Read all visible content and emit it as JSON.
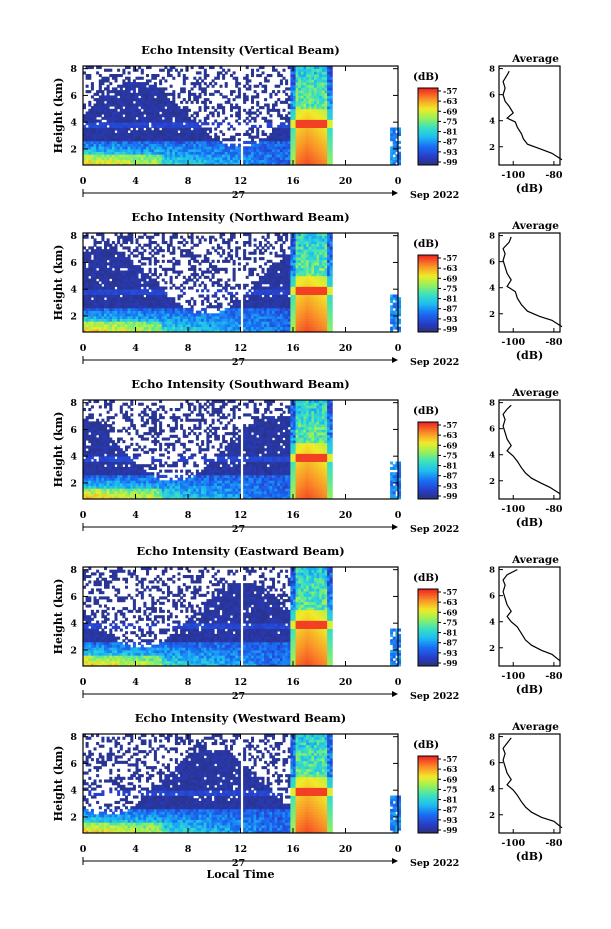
{
  "figure": {
    "xlabel": "Local Time",
    "date_day": "27",
    "date_month_year": "Sep 2022",
    "ylabel": "Height (km)",
    "colorbar_unit": "(dB)",
    "colorbar_ticks": [
      "-57",
      "-63",
      "-69",
      "-75",
      "-81",
      "-87",
      "-93",
      "-99"
    ],
    "profile_title": "Average",
    "profile_xlabel": "(dB)"
  },
  "chart_data": [
    {
      "type": "heatmap",
      "title": "Echo Intensity (Vertical Beam)",
      "xlabel": "Local Time",
      "ylabel": "Height (km)",
      "x_ticks": [
        "0",
        "4",
        "8",
        "12",
        "16",
        "20",
        "0"
      ],
      "y_ticks": [
        "2",
        "4",
        "6",
        "8"
      ],
      "xlim": [
        0,
        24
      ],
      "ylim": [
        0.8,
        8.2
      ],
      "colorbar": {
        "label": "(dB)",
        "range": [
          -99,
          -57
        ]
      },
      "profile": {
        "title": "Average",
        "xlabel": "(dB)",
        "x_ticks": [
          "-100",
          "-80"
        ],
        "y_ticks": [
          "2",
          "4",
          "6",
          "8"
        ],
        "points": [
          [
            -76,
            1
          ],
          [
            -81,
            1.5
          ],
          [
            -86,
            1.8
          ],
          [
            -93,
            2.2
          ],
          [
            -95,
            2.6
          ],
          [
            -96,
            3
          ],
          [
            -98,
            3.5
          ],
          [
            -99,
            3.9
          ],
          [
            -103,
            4.2
          ],
          [
            -100,
            4.6
          ],
          [
            -102,
            5.1
          ],
          [
            -104,
            5.5
          ],
          [
            -105,
            6
          ],
          [
            -104,
            6.5
          ],
          [
            -105,
            7
          ],
          [
            -103,
            7.5
          ],
          [
            -102,
            7.8
          ]
        ]
      }
    },
    {
      "type": "heatmap",
      "title": "Echo Intensity (Northward Beam)",
      "xlabel": "Local Time",
      "ylabel": "Height (km)",
      "x_ticks": [
        "0",
        "4",
        "8",
        "12",
        "16",
        "20",
        "0"
      ],
      "y_ticks": [
        "2",
        "4",
        "6",
        "8"
      ],
      "xlim": [
        0,
        24
      ],
      "ylim": [
        0.8,
        8.2
      ],
      "colorbar": {
        "label": "(dB)",
        "range": [
          -99,
          -57
        ]
      },
      "profile": {
        "title": "Average",
        "xlabel": "(dB)",
        "x_ticks": [
          "-100",
          "-80"
        ],
        "y_ticks": [
          "2",
          "4",
          "6",
          "8"
        ],
        "points": [
          [
            -76,
            1
          ],
          [
            -81,
            1.5
          ],
          [
            -87,
            1.8
          ],
          [
            -93,
            2.2
          ],
          [
            -96,
            2.7
          ],
          [
            -98,
            3.2
          ],
          [
            -99,
            3.7
          ],
          [
            -103,
            4.1
          ],
          [
            -101,
            4.6
          ],
          [
            -103,
            5.1
          ],
          [
            -104,
            5.6
          ],
          [
            -105,
            6.1
          ],
          [
            -104,
            6.6
          ],
          [
            -105,
            7
          ],
          [
            -102,
            7.5
          ],
          [
            -101,
            7.9
          ]
        ]
      }
    },
    {
      "type": "heatmap",
      "title": "Echo Intensity (Southward Beam)",
      "xlabel": "Local Time",
      "ylabel": "Height (km)",
      "x_ticks": [
        "0",
        "4",
        "8",
        "12",
        "16",
        "20",
        "0"
      ],
      "y_ticks": [
        "2",
        "4",
        "6",
        "8"
      ],
      "xlim": [
        0,
        24
      ],
      "ylim": [
        0.8,
        8.2
      ],
      "colorbar": {
        "label": "(dB)",
        "range": [
          -99,
          -57
        ]
      },
      "profile": {
        "title": "Average",
        "xlabel": "(dB)",
        "x_ticks": [
          "-100",
          "-80"
        ],
        "y_ticks": [
          "2",
          "4",
          "6",
          "8"
        ],
        "points": [
          [
            -77,
            1
          ],
          [
            -82,
            1.5
          ],
          [
            -86,
            1.8
          ],
          [
            -91,
            2.2
          ],
          [
            -94,
            2.6
          ],
          [
            -96,
            3
          ],
          [
            -98,
            3.5
          ],
          [
            -100,
            3.9
          ],
          [
            -103,
            4.3
          ],
          [
            -101,
            4.7
          ],
          [
            -103,
            5.2
          ],
          [
            -104,
            5.7
          ],
          [
            -105,
            6.2
          ],
          [
            -104,
            6.7
          ],
          [
            -105,
            7.1
          ],
          [
            -103,
            7.5
          ],
          [
            -101,
            7.8
          ]
        ]
      }
    },
    {
      "type": "heatmap",
      "title": "Echo Intensity (Eastward Beam)",
      "xlabel": "Local Time",
      "ylabel": "Height (km)",
      "x_ticks": [
        "0",
        "4",
        "8",
        "12",
        "16",
        "20",
        "0"
      ],
      "y_ticks": [
        "2",
        "4",
        "6",
        "8"
      ],
      "xlim": [
        0,
        24
      ],
      "ylim": [
        0.8,
        8.2
      ],
      "colorbar": {
        "label": "(dB)",
        "range": [
          -99,
          -57
        ]
      },
      "profile": {
        "title": "Average",
        "xlabel": "(dB)",
        "x_ticks": [
          "-100",
          "-80"
        ],
        "y_ticks": [
          "2",
          "4",
          "6",
          "8"
        ],
        "points": [
          [
            -77,
            1
          ],
          [
            -81,
            1.5
          ],
          [
            -86,
            1.8
          ],
          [
            -91,
            2.2
          ],
          [
            -94,
            2.6
          ],
          [
            -96,
            3.1
          ],
          [
            -98,
            3.6
          ],
          [
            -101,
            4
          ],
          [
            -103,
            4.4
          ],
          [
            -101,
            4.8
          ],
          [
            -103,
            5.3
          ],
          [
            -104,
            5.8
          ],
          [
            -105,
            6.3
          ],
          [
            -104,
            6.8
          ],
          [
            -105,
            7.2
          ],
          [
            -103,
            7.6
          ],
          [
            -98,
            8
          ]
        ]
      }
    },
    {
      "type": "heatmap",
      "title": "Echo Intensity (Westward Beam)",
      "xlabel": "Local Time",
      "ylabel": "Height (km)",
      "x_ticks": [
        "0",
        "4",
        "8",
        "12",
        "16",
        "20",
        "0"
      ],
      "y_ticks": [
        "2",
        "4",
        "6",
        "8"
      ],
      "xlim": [
        0,
        24
      ],
      "ylim": [
        0.8,
        8.2
      ],
      "colorbar": {
        "label": "(dB)",
        "range": [
          -99,
          -57
        ]
      },
      "profile": {
        "title": "Average",
        "xlabel": "(dB)",
        "x_ticks": [
          "-100",
          "-80"
        ],
        "y_ticks": [
          "2",
          "4",
          "6",
          "8"
        ],
        "points": [
          [
            -76,
            1
          ],
          [
            -80,
            1.5
          ],
          [
            -86,
            1.8
          ],
          [
            -91,
            2.2
          ],
          [
            -94,
            2.6
          ],
          [
            -96,
            3
          ],
          [
            -98,
            3.5
          ],
          [
            -100,
            3.9
          ],
          [
            -103,
            4.3
          ],
          [
            -101,
            4.7
          ],
          [
            -103,
            5.2
          ],
          [
            -104,
            5.7
          ],
          [
            -105,
            6.2
          ],
          [
            -104,
            6.7
          ],
          [
            -105,
            7.1
          ],
          [
            -103,
            7.5
          ],
          [
            -101,
            7.9
          ]
        ]
      }
    }
  ]
}
